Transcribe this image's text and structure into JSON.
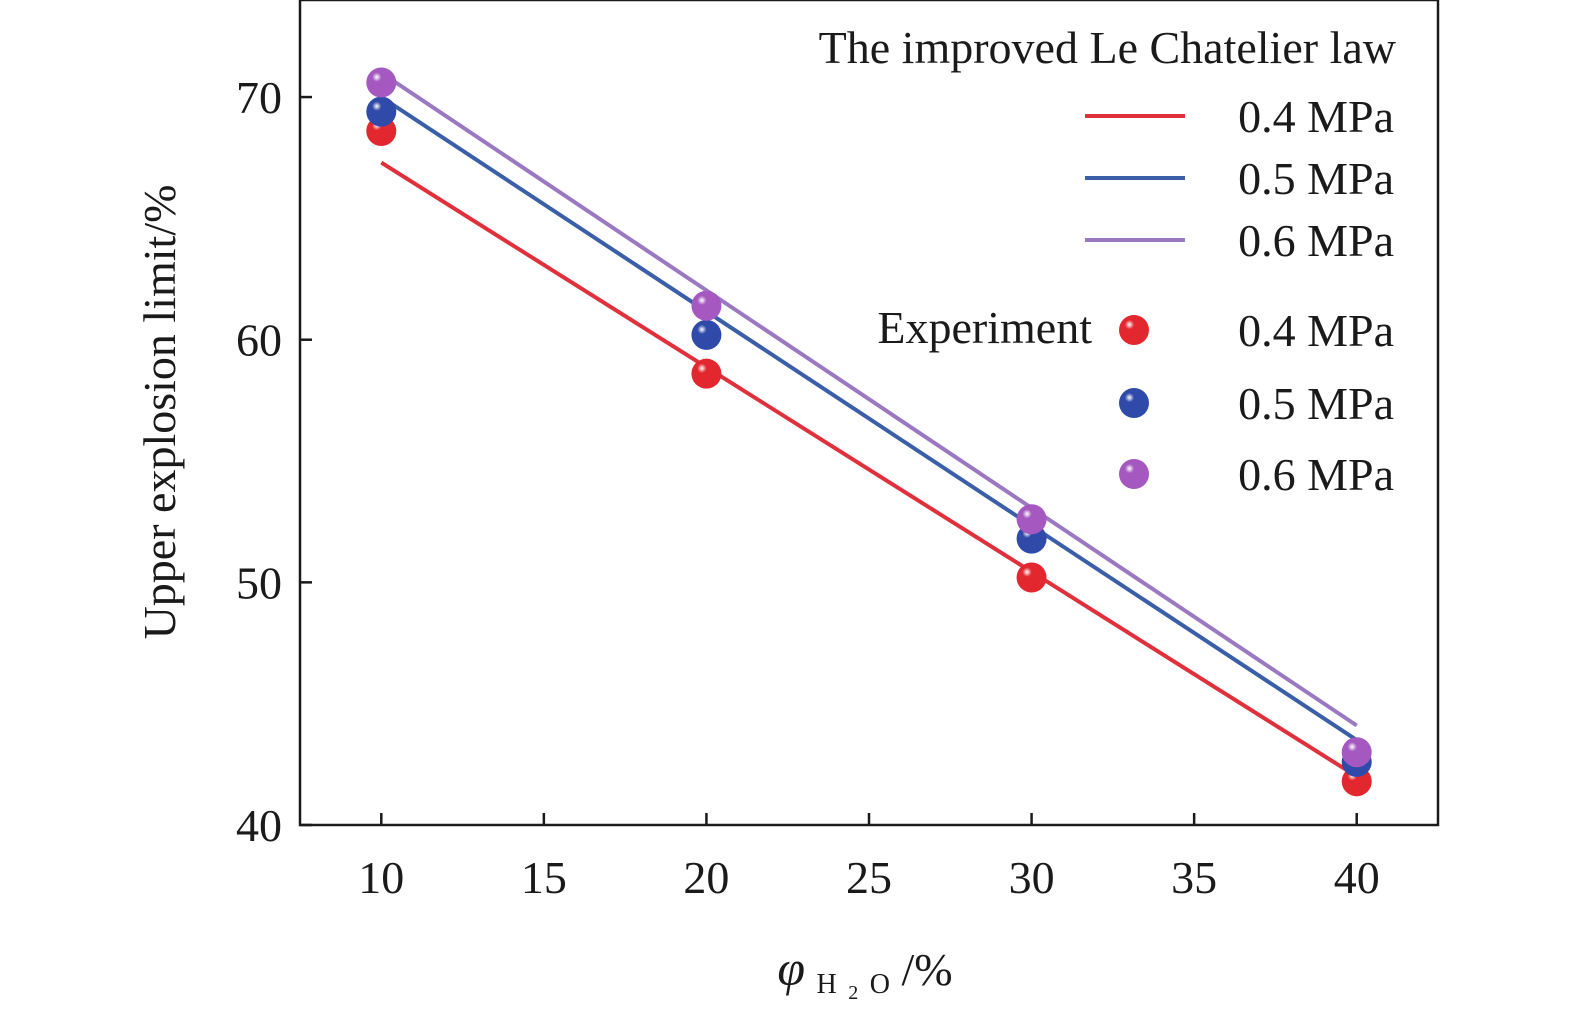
{
  "chart_data": {
    "type": "line",
    "xlabel": {
      "symbol": "φ",
      "subscript_main": "H",
      "subscript_small": "2",
      "subscript_end": "O",
      "suffix": "/%"
    },
    "ylabel": "Upper explosion limit/%",
    "xlim": [
      7.5,
      42.5
    ],
    "ylim": [
      40,
      74
    ],
    "x_ticks": [
      10,
      15,
      20,
      25,
      30,
      35,
      40
    ],
    "y_ticks": [
      40,
      50,
      60,
      70
    ],
    "grid": false,
    "legend_position": "top-right",
    "legend": {
      "model_title": "The improved Le Chatelier law",
      "experiment_title": "Experiment"
    },
    "model_series": [
      {
        "name": "0.4 MPa",
        "color": "#e0303c",
        "x": [
          10,
          40
        ],
        "y": [
          67.3,
          42.0
        ]
      },
      {
        "name": "0.5 MPa",
        "color": "#3a5ea8",
        "x": [
          10,
          40
        ],
        "y": [
          70.0,
          43.5
        ]
      },
      {
        "name": "0.6 MPa",
        "color": "#9b79c2",
        "x": [
          10,
          40
        ],
        "y": [
          71.0,
          44.1
        ]
      }
    ],
    "experiment_series": [
      {
        "name": "0.4 MPa",
        "color": "#e3272f",
        "x": [
          10,
          20,
          30,
          40
        ],
        "y": [
          68.6,
          58.6,
          50.2,
          41.8
        ]
      },
      {
        "name": "0.5 MPa",
        "color": "#2f4aa8",
        "x": [
          10,
          20,
          30,
          40
        ],
        "y": [
          69.4,
          60.2,
          51.8,
          42.6
        ]
      },
      {
        "name": "0.6 MPa",
        "color": "#a558c0",
        "x": [
          10,
          20,
          30,
          40
        ],
        "y": [
          70.6,
          61.4,
          52.6,
          43.0
        ]
      }
    ]
  }
}
